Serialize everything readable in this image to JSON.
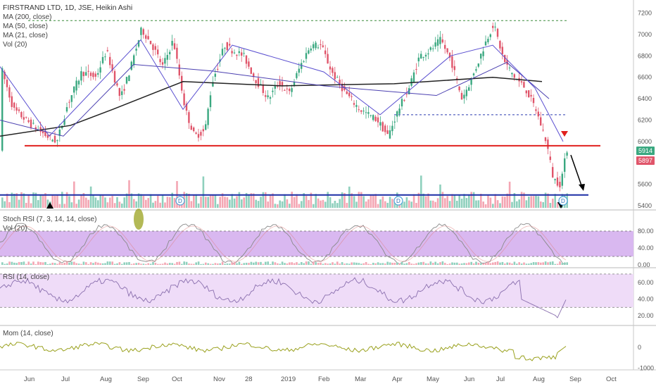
{
  "header": {
    "symbol_line": "FIRSTRAND LTD, 1D, JSE, Heikin Ashi",
    "studies": [
      "MA (200, close)",
      "MA (50, close)",
      "MA (21, close)",
      "Vol (20)"
    ]
  },
  "panes": {
    "stoch_label": "Stoch RSI (7, 3, 14, 14, close)",
    "stoch_vol_label": "Vol (20)",
    "rsi_label": "RSI (14, close)",
    "mom_label": "Mom (14, close)"
  },
  "price_badges": {
    "last": "5914",
    "ma21": "5897"
  },
  "dividend_marker": "D",
  "colors": {
    "up": "#3aa880",
    "down": "#e0556a",
    "ma200": "#222222",
    "ma50": "#4a3fb0",
    "ma21": "#5a4fd0",
    "support": "#e0201e",
    "base": "#1c2ea6",
    "stoch_fill": "#d9b8f0",
    "rsi_fill": "#efdcf8",
    "mom": "#9aa11e"
  },
  "chart_data": [
    {
      "type": "line",
      "title": "FIRSTRAND LTD, 1D, JSE, Heikin Ashi",
      "x_ticks": [
        "Jun",
        "Jul",
        "Aug",
        "Sep",
        "Oct",
        "Nov",
        "28",
        "2019",
        "Feb",
        "Mar",
        "Apr",
        "May",
        "Jun",
        "Jul",
        "Aug",
        "Sep",
        "Oct"
      ],
      "y_ticks": [
        "7200",
        "7000",
        "6800",
        "6600",
        "6400",
        "6200",
        "6000",
        "5800",
        "5600",
        "5400"
      ],
      "ylim": [
        5400,
        7230
      ],
      "series": [
        {
          "name": "MA (200, close)",
          "x": [
            0,
            100,
            160,
            260,
            400,
            560,
            700,
            770
          ],
          "y": [
            6050,
            6150,
            6300,
            6560,
            6520,
            6540,
            6600,
            6560
          ]
        },
        {
          "name": "MA (50, close)",
          "x": [
            0,
            90,
            190,
            300,
            460,
            620,
            720,
            780
          ],
          "y": [
            6200,
            6050,
            6720,
            6660,
            6520,
            6430,
            6740,
            6400
          ]
        },
        {
          "name": "MA (21, close)",
          "x": [
            0,
            70,
            200,
            260,
            330,
            460,
            540,
            640,
            700,
            760,
            800
          ],
          "y": [
            6700,
            6050,
            6950,
            6300,
            6900,
            6650,
            6250,
            6800,
            6900,
            6500,
            6000
          ]
        }
      ],
      "levels": [
        7130,
        6250,
        5960,
        5500
      ],
      "last_price": 5914,
      "ma21_value": 5897
    },
    {
      "type": "line",
      "title": "Stoch RSI (7, 3, 14, 14, close)",
      "y_ticks": [
        "80.00",
        "40.00",
        "0.00"
      ],
      "ylim": [
        0,
        100
      ],
      "bands": [
        20,
        80
      ]
    },
    {
      "type": "line",
      "title": "RSI (14, close)",
      "y_ticks": [
        "60.00",
        "40.00",
        "20.00"
      ],
      "ylim": [
        10,
        75
      ],
      "bands": [
        30,
        70
      ]
    },
    {
      "type": "line",
      "title": "Mom (14, close)",
      "y_ticks": [
        "0",
        "-1000"
      ],
      "ylim": [
        -1050,
        950
      ]
    }
  ]
}
